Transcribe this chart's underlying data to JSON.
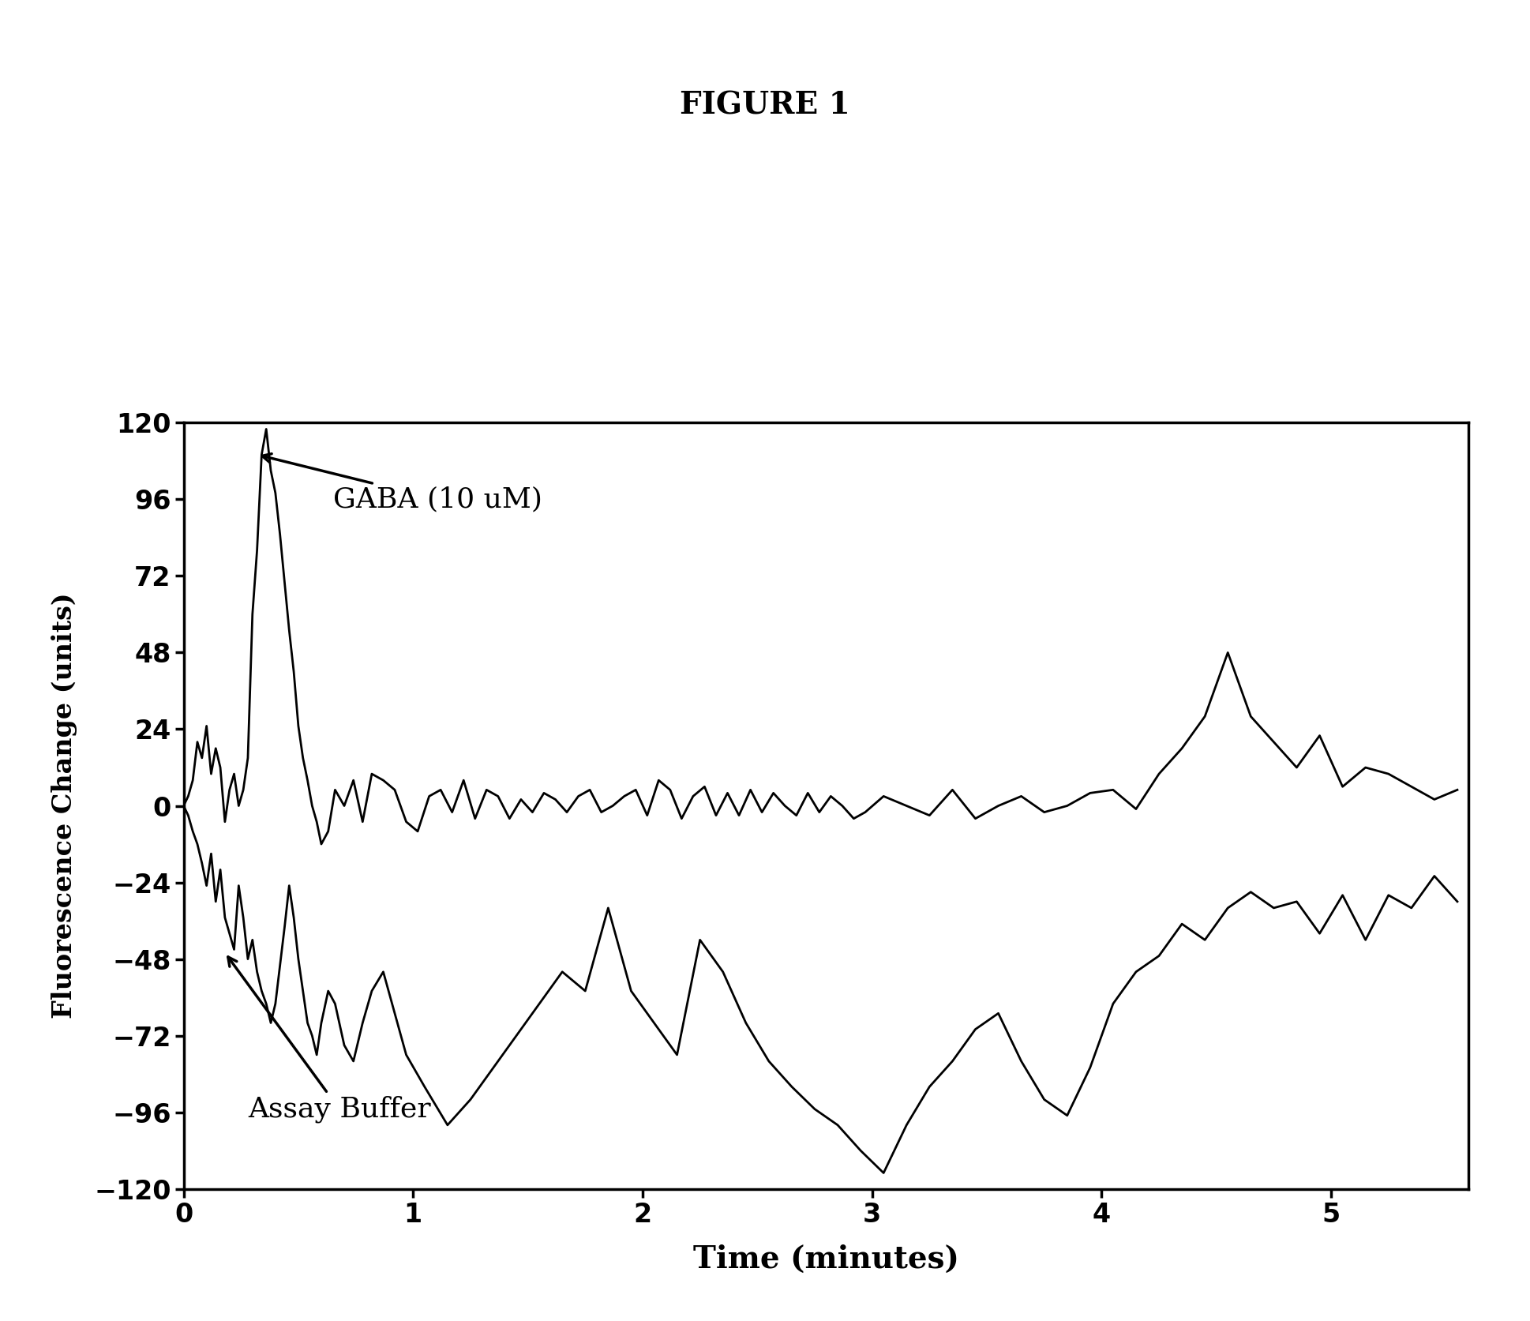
{
  "title": "FIGURE 1",
  "xlabel": "Time (minutes)",
  "ylabel": "Fluorescence Change (units)",
  "xlim": [
    0,
    5.6
  ],
  "ylim": [
    -120,
    120
  ],
  "yticks": [
    -120,
    -96,
    -72,
    -48,
    -24,
    0,
    24,
    48,
    72,
    96,
    120
  ],
  "xticks": [
    0,
    1,
    2,
    3,
    4,
    5
  ],
  "background_color": "#ffffff",
  "line_color": "#000000",
  "annotation_gaba": "GABA (10 uM)",
  "annotation_buffer": "Assay Buffer",
  "gaba_x": [
    0.0,
    0.02,
    0.04,
    0.06,
    0.08,
    0.1,
    0.12,
    0.14,
    0.16,
    0.18,
    0.2,
    0.22,
    0.24,
    0.26,
    0.28,
    0.3,
    0.32,
    0.34,
    0.36,
    0.38,
    0.4,
    0.42,
    0.44,
    0.46,
    0.48,
    0.5,
    0.52,
    0.54,
    0.56,
    0.58,
    0.6,
    0.63,
    0.66,
    0.7,
    0.74,
    0.78,
    0.82,
    0.87,
    0.92,
    0.97,
    1.02,
    1.07,
    1.12,
    1.17,
    1.22,
    1.27,
    1.32,
    1.37,
    1.42,
    1.47,
    1.52,
    1.57,
    1.62,
    1.67,
    1.72,
    1.77,
    1.82,
    1.87,
    1.92,
    1.97,
    2.02,
    2.07,
    2.12,
    2.17,
    2.22,
    2.27,
    2.32,
    2.37,
    2.42,
    2.47,
    2.52,
    2.57,
    2.62,
    2.67,
    2.72,
    2.77,
    2.82,
    2.87,
    2.92,
    2.97,
    3.05,
    3.15,
    3.25,
    3.35,
    3.45,
    3.55,
    3.65,
    3.75,
    3.85,
    3.95,
    4.05,
    4.15,
    4.25,
    4.35,
    4.45,
    4.55,
    4.65,
    4.75,
    4.85,
    4.95,
    5.05,
    5.15,
    5.25,
    5.35,
    5.45,
    5.55
  ],
  "gaba_y": [
    0,
    3,
    8,
    20,
    15,
    25,
    10,
    18,
    12,
    -5,
    5,
    10,
    0,
    5,
    15,
    60,
    80,
    110,
    118,
    105,
    98,
    85,
    70,
    55,
    42,
    25,
    15,
    8,
    0,
    -5,
    -12,
    -8,
    5,
    0,
    8,
    -5,
    10,
    8,
    5,
    -5,
    -8,
    3,
    5,
    -2,
    8,
    -4,
    5,
    3,
    -4,
    2,
    -2,
    4,
    2,
    -2,
    3,
    5,
    -2,
    0,
    3,
    5,
    -3,
    8,
    5,
    -4,
    3,
    6,
    -3,
    4,
    -3,
    5,
    -2,
    4,
    0,
    -3,
    4,
    -2,
    3,
    0,
    -4,
    -2,
    3,
    0,
    -3,
    5,
    -4,
    0,
    3,
    -2,
    0,
    4,
    5,
    -1,
    10,
    18,
    28,
    48,
    28,
    20,
    12,
    22,
    6,
    12,
    10,
    6,
    2,
    5
  ],
  "buffer_x": [
    0.0,
    0.02,
    0.04,
    0.06,
    0.08,
    0.1,
    0.12,
    0.14,
    0.16,
    0.18,
    0.2,
    0.22,
    0.24,
    0.26,
    0.28,
    0.3,
    0.32,
    0.34,
    0.36,
    0.38,
    0.4,
    0.42,
    0.44,
    0.46,
    0.48,
    0.5,
    0.52,
    0.54,
    0.56,
    0.58,
    0.6,
    0.63,
    0.66,
    0.7,
    0.74,
    0.78,
    0.82,
    0.87,
    0.92,
    0.97,
    1.05,
    1.15,
    1.25,
    1.35,
    1.45,
    1.55,
    1.65,
    1.75,
    1.85,
    1.95,
    2.05,
    2.15,
    2.25,
    2.35,
    2.45,
    2.55,
    2.65,
    2.75,
    2.85,
    2.95,
    3.05,
    3.15,
    3.25,
    3.35,
    3.45,
    3.55,
    3.65,
    3.75,
    3.85,
    3.95,
    4.05,
    4.15,
    4.25,
    4.35,
    4.45,
    4.55,
    4.65,
    4.75,
    4.85,
    4.95,
    5.05,
    5.15,
    5.25,
    5.35,
    5.45,
    5.55
  ],
  "buffer_y": [
    0,
    -3,
    -8,
    -12,
    -18,
    -25,
    -15,
    -30,
    -20,
    -35,
    -40,
    -45,
    -25,
    -35,
    -48,
    -42,
    -52,
    -58,
    -62,
    -68,
    -62,
    -50,
    -38,
    -25,
    -35,
    -48,
    -58,
    -68,
    -72,
    -78,
    -68,
    -58,
    -62,
    -75,
    -80,
    -68,
    -58,
    -52,
    -65,
    -78,
    -88,
    -100,
    -92,
    -82,
    -72,
    -62,
    -52,
    -58,
    -32,
    -58,
    -68,
    -78,
    -42,
    -52,
    -68,
    -80,
    -88,
    -95,
    -100,
    -108,
    -115,
    -100,
    -88,
    -80,
    -70,
    -65,
    -80,
    -92,
    -97,
    -82,
    -62,
    -52,
    -47,
    -37,
    -42,
    -32,
    -27,
    -32,
    -30,
    -40,
    -28,
    -42,
    -28,
    -32,
    -22,
    -30
  ]
}
